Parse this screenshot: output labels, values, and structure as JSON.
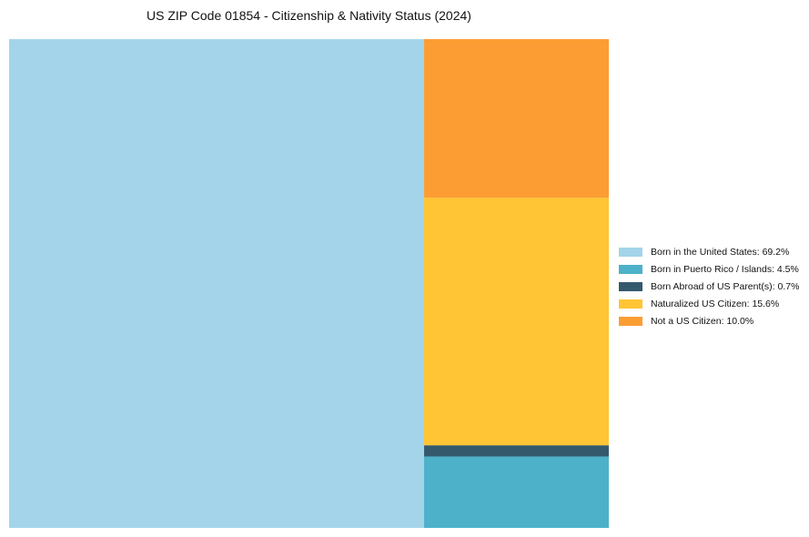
{
  "chart_data": {
    "type": "treemap",
    "title": "US ZIP Code 01854 - Citizenship & Nativity Status (2024)",
    "unit": "%",
    "items": [
      {
        "label": "Born in the United States",
        "value": 69.2,
        "legend": "Born in the United States: 69.2%",
        "color": "#94cce6",
        "fill_opacity": 0.85
      },
      {
        "label": "Not a US Citizen",
        "value": 10.0,
        "legend": "Not a US Citizen: 10.0%",
        "color": "#fb8500",
        "fill_opacity": 0.8
      },
      {
        "label": "Naturalized US Citizen",
        "value": 15.6,
        "legend": "Naturalized US Citizen: 15.6%",
        "color": "#ffb703",
        "fill_opacity": 0.8
      },
      {
        "label": "Born Abroad of US Parent(s)",
        "value": 0.7,
        "legend": "Born Abroad of US Parent(s): 0.7%",
        "color": "#023047",
        "fill_opacity": 0.8
      },
      {
        "label": "Born in Puerto Rico / Islands",
        "value": 4.5,
        "legend": "Born in Puerto Rico / Islands: 4.5%",
        "color": "#219ebc",
        "fill_opacity": 0.8
      }
    ],
    "legend_order": [
      "Born in the United States",
      "Born in Puerto Rico / Islands",
      "Born Abroad of US Parent(s)",
      "Naturalized US Citizen",
      "Not a US Citizen"
    ],
    "legend_position": "right"
  }
}
